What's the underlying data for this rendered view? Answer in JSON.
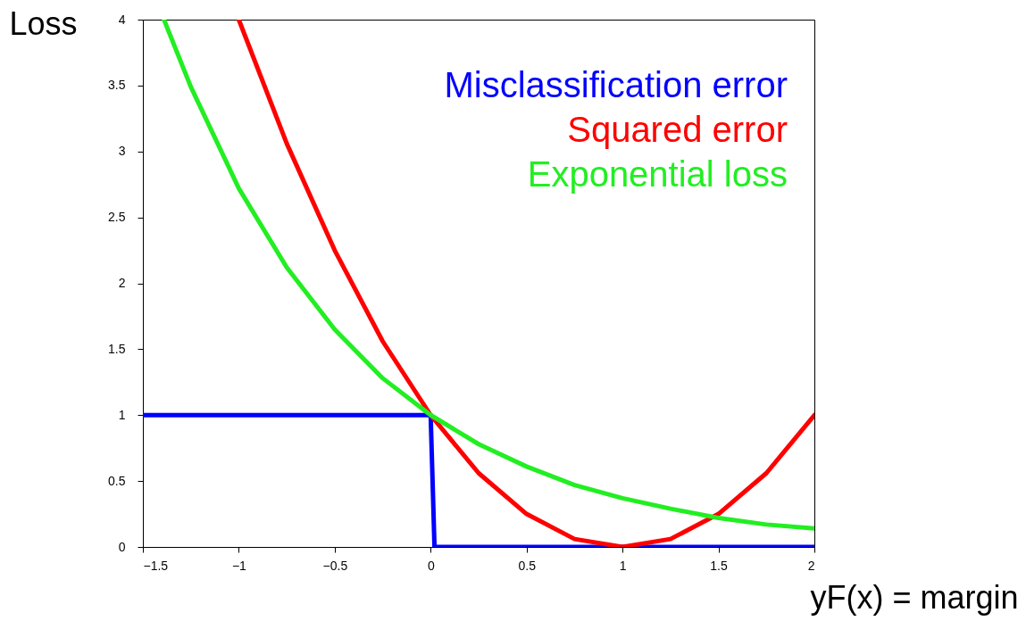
{
  "chart_data": {
    "type": "line",
    "xlabel": "yF(x) = margin",
    "ylabel": "Loss",
    "xlim": [
      -1.5,
      2
    ],
    "xticks": [
      -1.5,
      -1,
      -0.5,
      0,
      0.5,
      1,
      1.5,
      2
    ],
    "ylim": [
      0,
      4
    ],
    "yticks": [
      0,
      0.5,
      1,
      1.5,
      2,
      2.5,
      3,
      3.5,
      4
    ],
    "grid": false,
    "legend": "top right",
    "marker": "none",
    "line_style": "solid",
    "series": [
      {
        "name": "Misclassification error",
        "color": "#0000ff",
        "x": [
          -1.5,
          0,
          0.01,
          0.02,
          2
        ],
        "values": [
          1,
          1,
          0.5,
          0,
          0
        ]
      },
      {
        "name": "Squared error",
        "color": "#ff0000",
        "x": [
          -1,
          -0.75,
          -0.5,
          -0.25,
          0,
          0.25,
          0.5,
          0.75,
          1,
          1.25,
          1.5,
          1.75,
          2
        ],
        "values": [
          4,
          3.06,
          2.25,
          1.56,
          1,
          0.56,
          0.25,
          0.06,
          0,
          0.06,
          0.25,
          0.56,
          1
        ]
      },
      {
        "name": "Exponential loss",
        "color": "#22ee22",
        "x": [
          -1.39,
          -1.25,
          -1,
          -0.75,
          -0.5,
          -0.25,
          0,
          0.25,
          0.5,
          0.75,
          1,
          1.25,
          1.5,
          1.75,
          2
        ],
        "values": [
          4,
          3.49,
          2.72,
          2.12,
          1.65,
          1.28,
          1,
          0.78,
          0.61,
          0.47,
          0.37,
          0.29,
          0.22,
          0.17,
          0.14
        ]
      }
    ]
  }
}
